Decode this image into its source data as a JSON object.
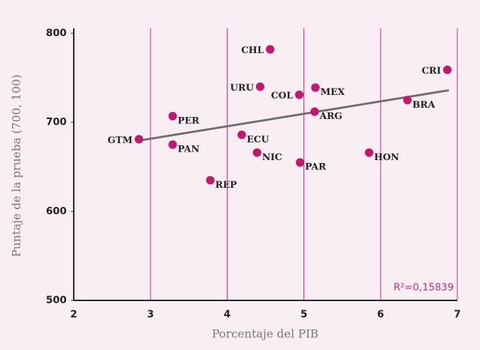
{
  "chart_data": {
    "type": "scatter",
    "xlabel": "Porcentaje del PIB",
    "ylabel": "Puntaje de la prueba (700, 100)",
    "annotation": "R²=0,15839",
    "xlim": [
      2,
      7
    ],
    "xticks": [
      2,
      3,
      4,
      5,
      6,
      7
    ],
    "ylim": [
      500,
      800
    ],
    "yticks": [
      500,
      600,
      700,
      800
    ],
    "grid": true,
    "grid_color": "#c0307a",
    "color": "#c2186e",
    "points": {
      "labels": [
        "CHL",
        "CRI",
        "URU",
        "MEX",
        "COL",
        "BRA",
        "ARG",
        "PER",
        "GTM",
        "ECU",
        "PAN",
        "NIC",
        "HON",
        "PAR",
        "REP"
      ],
      "x": [
        4.56,
        6.87,
        4.43,
        5.15,
        4.94,
        6.35,
        5.14,
        3.29,
        2.85,
        4.19,
        3.29,
        4.39,
        5.85,
        4.95,
        3.78
      ],
      "y": [
        782,
        759,
        740,
        739,
        731,
        725,
        712,
        707,
        681,
        686,
        675,
        666,
        666,
        655,
        635
      ]
    },
    "trendline": {
      "x": [
        2.85,
        6.89
      ],
      "y": [
        679.5,
        736
      ],
      "color": "#6e6e6e"
    }
  }
}
